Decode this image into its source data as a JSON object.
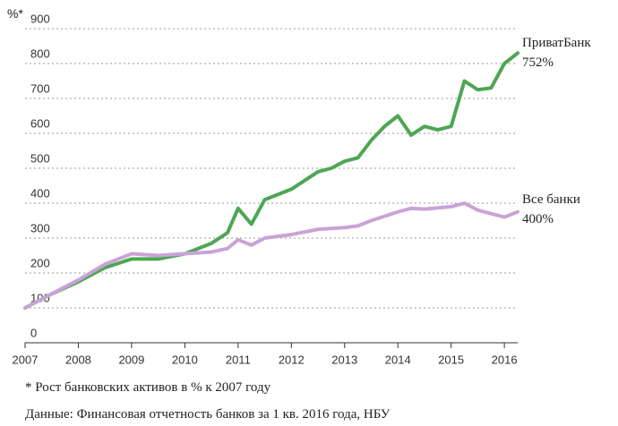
{
  "chart_data": {
    "type": "line",
    "y_label": "%*",
    "footnote": "* Рост банковских активов в % к 2007 году",
    "source": "Данные: Финансовая отчетность банков за 1 кв. 2016 года, НБУ",
    "xlim": [
      2007,
      2016.25
    ],
    "ylim": [
      0,
      900
    ],
    "xticks": [
      2007,
      2008,
      2009,
      2010,
      2011,
      2012,
      2013,
      2014,
      2015,
      2016
    ],
    "yticks": [
      0,
      100,
      200,
      300,
      400,
      500,
      600,
      700,
      800,
      900
    ],
    "grid": true,
    "series": [
      {
        "name": "ПриватБанк",
        "annotation": "752%",
        "color": "#4ea654",
        "x": [
          2007,
          2007.5,
          2008,
          2008.5,
          2009,
          2009.5,
          2010,
          2010.5,
          2010.8,
          2011,
          2011.25,
          2011.5,
          2012,
          2012.5,
          2012.75,
          2013,
          2013.25,
          2013.5,
          2013.75,
          2014,
          2014.25,
          2014.5,
          2014.75,
          2015,
          2015.25,
          2015.5,
          2015.75,
          2016,
          2016.25
        ],
        "values": [
          100,
          140,
          175,
          215,
          240,
          240,
          255,
          285,
          315,
          385,
          340,
          410,
          440,
          490,
          500,
          520,
          530,
          580,
          620,
          650,
          595,
          620,
          610,
          620,
          750,
          725,
          730,
          800,
          830
        ]
      },
      {
        "name": "Все банки",
        "annotation": "400%",
        "color": "#c9a3d6",
        "x": [
          2007,
          2007.5,
          2008,
          2008.5,
          2009,
          2009.5,
          2010,
          2010.5,
          2010.8,
          2011,
          2011.25,
          2011.5,
          2012,
          2012.5,
          2013,
          2013.25,
          2013.5,
          2014,
          2014.25,
          2014.5,
          2015,
          2015.25,
          2015.5,
          2016,
          2016.25
        ],
        "values": [
          100,
          140,
          180,
          225,
          255,
          250,
          255,
          260,
          270,
          295,
          280,
          300,
          310,
          325,
          330,
          335,
          350,
          375,
          385,
          383,
          390,
          400,
          380,
          360,
          375
        ]
      }
    ]
  }
}
